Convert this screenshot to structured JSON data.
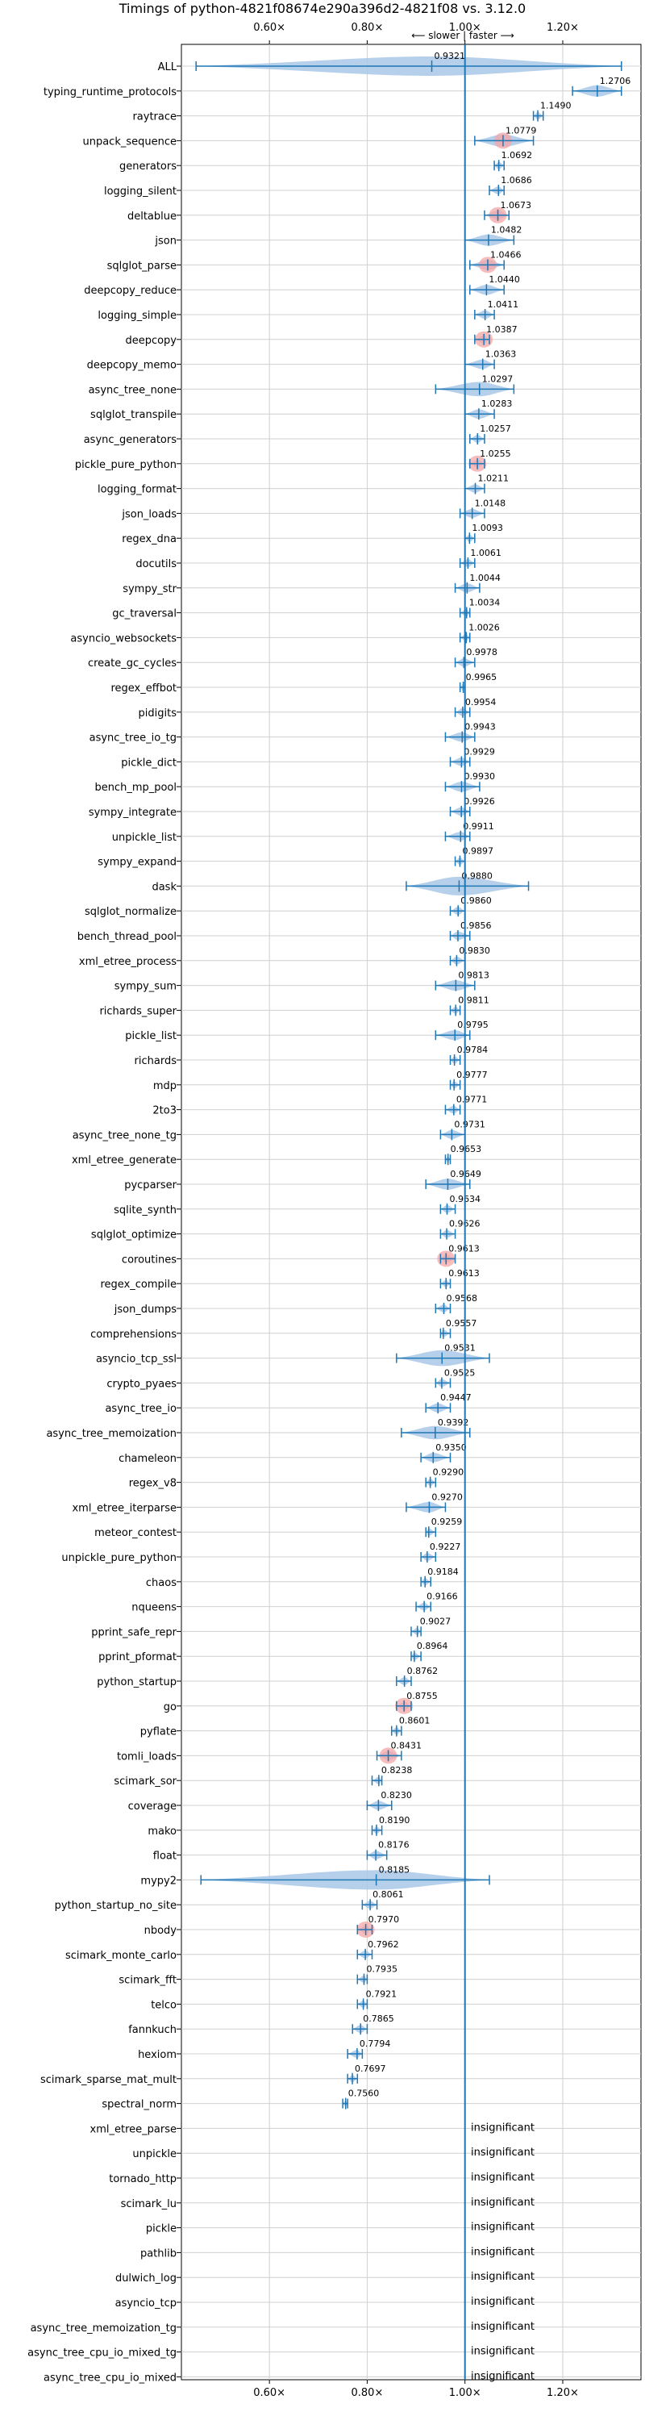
{
  "chart_data": {
    "type": "violin",
    "title": "Timings of python-4821f08674e290a396d2-4821f08 vs. 3.12.0",
    "direction_label": "⟵ slower | faster ⟶",
    "xlim": [
      0.42,
      1.36
    ],
    "xticks": [
      0.6,
      0.8,
      1.0,
      1.2
    ],
    "xtick_labels": [
      "0.60×",
      "0.80×",
      "1.00×",
      "1.20×"
    ],
    "reference": 1.0,
    "insignificant_label": "insignificant",
    "colors": {
      "body": "#a9c8e8",
      "line": "#1f77b4",
      "significant": "#f4a6a6",
      "grid": "#d0d0d0"
    },
    "benchmarks": [
      {
        "name": "ALL",
        "value": 0.9321,
        "min": 0.45,
        "max": 1.32
      },
      {
        "name": "typing_runtime_protocols",
        "value": 1.2706,
        "min": 1.22,
        "max": 1.32
      },
      {
        "name": "raytrace",
        "value": 1.149,
        "min": 1.14,
        "max": 1.16
      },
      {
        "name": "unpack_sequence",
        "value": 1.0779,
        "min": 1.02,
        "max": 1.14,
        "sig": true
      },
      {
        "name": "generators",
        "value": 1.0692,
        "min": 1.06,
        "max": 1.08
      },
      {
        "name": "logging_silent",
        "value": 1.0686,
        "min": 1.05,
        "max": 1.08
      },
      {
        "name": "deltablue",
        "value": 1.0673,
        "min": 1.04,
        "max": 1.09,
        "sig": true
      },
      {
        "name": "json",
        "value": 1.0482,
        "min": 1.0,
        "max": 1.1
      },
      {
        "name": "sqlglot_parse",
        "value": 1.0466,
        "min": 1.01,
        "max": 1.08,
        "sig": true
      },
      {
        "name": "deepcopy_reduce",
        "value": 1.044,
        "min": 1.01,
        "max": 1.08
      },
      {
        "name": "logging_simple",
        "value": 1.0411,
        "min": 1.02,
        "max": 1.06
      },
      {
        "name": "deepcopy",
        "value": 1.0387,
        "min": 1.02,
        "max": 1.05,
        "sig": true
      },
      {
        "name": "deepcopy_memo",
        "value": 1.0363,
        "min": 1.0,
        "max": 1.06
      },
      {
        "name": "async_tree_none",
        "value": 1.0297,
        "min": 0.94,
        "max": 1.1
      },
      {
        "name": "sqlglot_transpile",
        "value": 1.0283,
        "min": 1.0,
        "max": 1.06
      },
      {
        "name": "async_generators",
        "value": 1.0257,
        "min": 1.01,
        "max": 1.04
      },
      {
        "name": "pickle_pure_python",
        "value": 1.0255,
        "min": 1.01,
        "max": 1.04,
        "sig": true
      },
      {
        "name": "logging_format",
        "value": 1.0211,
        "min": 1.0,
        "max": 1.04
      },
      {
        "name": "json_loads",
        "value": 1.0148,
        "min": 0.99,
        "max": 1.04
      },
      {
        "name": "regex_dna",
        "value": 1.0093,
        "min": 1.0,
        "max": 1.02
      },
      {
        "name": "docutils",
        "value": 1.0061,
        "min": 0.99,
        "max": 1.02
      },
      {
        "name": "sympy_str",
        "value": 1.0044,
        "min": 0.98,
        "max": 1.03
      },
      {
        "name": "gc_traversal",
        "value": 1.0034,
        "min": 0.99,
        "max": 1.01
      },
      {
        "name": "asyncio_websockets",
        "value": 1.0026,
        "min": 0.99,
        "max": 1.01
      },
      {
        "name": "create_gc_cycles",
        "value": 0.9978,
        "min": 0.98,
        "max": 1.02
      },
      {
        "name": "regex_effbot",
        "value": 0.9965,
        "min": 0.99,
        "max": 1.0
      },
      {
        "name": "pidigits",
        "value": 0.9954,
        "min": 0.98,
        "max": 1.01
      },
      {
        "name": "async_tree_io_tg",
        "value": 0.9943,
        "min": 0.96,
        "max": 1.02
      },
      {
        "name": "pickle_dict",
        "value": 0.9929,
        "min": 0.97,
        "max": 1.01
      },
      {
        "name": "bench_mp_pool",
        "value": 0.993,
        "min": 0.96,
        "max": 1.03
      },
      {
        "name": "sympy_integrate",
        "value": 0.9926,
        "min": 0.97,
        "max": 1.01
      },
      {
        "name": "unpickle_list",
        "value": 0.9911,
        "min": 0.96,
        "max": 1.01
      },
      {
        "name": "sympy_expand",
        "value": 0.9897,
        "min": 0.98,
        "max": 1.0
      },
      {
        "name": "dask",
        "value": 0.988,
        "min": 0.88,
        "max": 1.13
      },
      {
        "name": "sqlglot_normalize",
        "value": 0.986,
        "min": 0.97,
        "max": 1.0
      },
      {
        "name": "bench_thread_pool",
        "value": 0.9856,
        "min": 0.97,
        "max": 1.01
      },
      {
        "name": "xml_etree_process",
        "value": 0.983,
        "min": 0.97,
        "max": 1.0
      },
      {
        "name": "sympy_sum",
        "value": 0.9813,
        "min": 0.94,
        "max": 1.02
      },
      {
        "name": "richards_super",
        "value": 0.9811,
        "min": 0.97,
        "max": 0.99
      },
      {
        "name": "pickle_list",
        "value": 0.9795,
        "min": 0.94,
        "max": 1.01
      },
      {
        "name": "richards",
        "value": 0.9784,
        "min": 0.97,
        "max": 0.99
      },
      {
        "name": "mdp",
        "value": 0.9777,
        "min": 0.97,
        "max": 0.99
      },
      {
        "name": "2to3",
        "value": 0.9771,
        "min": 0.96,
        "max": 0.99
      },
      {
        "name": "async_tree_none_tg",
        "value": 0.9731,
        "min": 0.95,
        "max": 1.0
      },
      {
        "name": "xml_etree_generate",
        "value": 0.9653,
        "min": 0.96,
        "max": 0.97
      },
      {
        "name": "pycparser",
        "value": 0.9649,
        "min": 0.92,
        "max": 1.01
      },
      {
        "name": "sqlite_synth",
        "value": 0.9634,
        "min": 0.95,
        "max": 0.98
      },
      {
        "name": "sqlglot_optimize",
        "value": 0.9626,
        "min": 0.95,
        "max": 0.98
      },
      {
        "name": "coroutines",
        "value": 0.9613,
        "min": 0.95,
        "max": 0.98,
        "sig": true
      },
      {
        "name": "regex_compile",
        "value": 0.9613,
        "min": 0.95,
        "max": 0.97
      },
      {
        "name": "json_dumps",
        "value": 0.9568,
        "min": 0.94,
        "max": 0.97
      },
      {
        "name": "comprehensions",
        "value": 0.9557,
        "min": 0.95,
        "max": 0.97
      },
      {
        "name": "asyncio_tcp_ssl",
        "value": 0.9531,
        "min": 0.86,
        "max": 1.05
      },
      {
        "name": "crypto_pyaes",
        "value": 0.9525,
        "min": 0.94,
        "max": 0.97
      },
      {
        "name": "async_tree_io",
        "value": 0.9447,
        "min": 0.92,
        "max": 0.97
      },
      {
        "name": "async_tree_memoization",
        "value": 0.9392,
        "min": 0.87,
        "max": 1.01
      },
      {
        "name": "chameleon",
        "value": 0.935,
        "min": 0.91,
        "max": 0.97
      },
      {
        "name": "regex_v8",
        "value": 0.929,
        "min": 0.92,
        "max": 0.94
      },
      {
        "name": "xml_etree_iterparse",
        "value": 0.927,
        "min": 0.88,
        "max": 0.96
      },
      {
        "name": "meteor_contest",
        "value": 0.9259,
        "min": 0.92,
        "max": 0.94
      },
      {
        "name": "unpickle_pure_python",
        "value": 0.9227,
        "min": 0.91,
        "max": 0.94
      },
      {
        "name": "chaos",
        "value": 0.9184,
        "min": 0.91,
        "max": 0.93
      },
      {
        "name": "nqueens",
        "value": 0.9166,
        "min": 0.9,
        "max": 0.93
      },
      {
        "name": "pprint_safe_repr",
        "value": 0.9027,
        "min": 0.89,
        "max": 0.91
      },
      {
        "name": "pprint_pformat",
        "value": 0.8964,
        "min": 0.89,
        "max": 0.91
      },
      {
        "name": "python_startup",
        "value": 0.8762,
        "min": 0.86,
        "max": 0.89
      },
      {
        "name": "go",
        "value": 0.8755,
        "min": 0.86,
        "max": 0.89,
        "sig": true
      },
      {
        "name": "pyflate",
        "value": 0.8601,
        "min": 0.85,
        "max": 0.87
      },
      {
        "name": "tomli_loads",
        "value": 0.8431,
        "min": 0.82,
        "max": 0.87,
        "sig": true
      },
      {
        "name": "scimark_sor",
        "value": 0.8238,
        "min": 0.81,
        "max": 0.83
      },
      {
        "name": "coverage",
        "value": 0.823,
        "min": 0.8,
        "max": 0.85
      },
      {
        "name": "mako",
        "value": 0.819,
        "min": 0.81,
        "max": 0.83
      },
      {
        "name": "float",
        "value": 0.8176,
        "min": 0.8,
        "max": 0.84
      },
      {
        "name": "mypy2",
        "value": 0.8185,
        "min": 0.46,
        "max": 1.05
      },
      {
        "name": "python_startup_no_site",
        "value": 0.8061,
        "min": 0.79,
        "max": 0.82
      },
      {
        "name": "nbody",
        "value": 0.797,
        "min": 0.78,
        "max": 0.81,
        "sig": true
      },
      {
        "name": "scimark_monte_carlo",
        "value": 0.7962,
        "min": 0.78,
        "max": 0.81
      },
      {
        "name": "scimark_fft",
        "value": 0.7935,
        "min": 0.78,
        "max": 0.8
      },
      {
        "name": "telco",
        "value": 0.7921,
        "min": 0.78,
        "max": 0.8
      },
      {
        "name": "fannkuch",
        "value": 0.7865,
        "min": 0.77,
        "max": 0.8
      },
      {
        "name": "hexiom",
        "value": 0.7794,
        "min": 0.76,
        "max": 0.79
      },
      {
        "name": "scimark_sparse_mat_mult",
        "value": 0.7697,
        "min": 0.76,
        "max": 0.78
      },
      {
        "name": "spectral_norm",
        "value": 0.756,
        "min": 0.75,
        "max": 0.76
      },
      {
        "name": "xml_etree_parse",
        "insignificant": true
      },
      {
        "name": "unpickle",
        "insignificant": true
      },
      {
        "name": "tornado_http",
        "insignificant": true
      },
      {
        "name": "scimark_lu",
        "insignificant": true
      },
      {
        "name": "pickle",
        "insignificant": true
      },
      {
        "name": "pathlib",
        "insignificant": true
      },
      {
        "name": "dulwich_log",
        "insignificant": true
      },
      {
        "name": "asyncio_tcp",
        "insignificant": true
      },
      {
        "name": "async_tree_memoization_tg",
        "insignificant": true
      },
      {
        "name": "async_tree_cpu_io_mixed_tg",
        "insignificant": true
      },
      {
        "name": "async_tree_cpu_io_mixed",
        "insignificant": true
      }
    ]
  }
}
